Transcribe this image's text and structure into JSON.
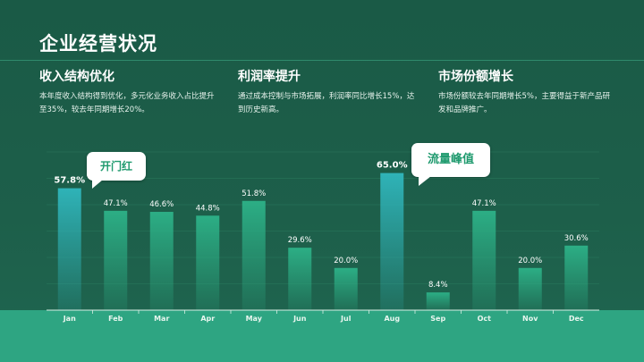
{
  "header": {
    "title": "企业经营状况"
  },
  "columns": [
    {
      "heading": "收入结构优化",
      "body": "本年度收入结构得到优化，多元化业务收入占比提升至35%，较去年同期增长20%。"
    },
    {
      "heading": "利润率提升",
      "body": "通过成本控制与市场拓展，利润率同比增长15%，达到历史新高。"
    },
    {
      "heading": "市场份额增长",
      "body": "市场份额较去年同期增长5%，主要得益于新产品研发和品牌推广。"
    }
  ],
  "callouts": {
    "jan": "开门红",
    "aug": "流量峰值"
  },
  "chart_data": {
    "type": "bar",
    "categories": [
      "Jan",
      "Feb",
      "Mar",
      "Apr",
      "May",
      "Jun",
      "Jul",
      "Aug",
      "Sep",
      "Oct",
      "Nov",
      "Dec"
    ],
    "values": [
      57.8,
      47.1,
      46.6,
      44.8,
      51.8,
      29.6,
      20.0,
      65.0,
      8.4,
      47.1,
      20.0,
      30.6
    ],
    "labels": [
      "57.8%",
      "47.1%",
      "46.6%",
      "44.8%",
      "51.8%",
      "29.6%",
      "20.0%",
      "65.0%",
      "8.4%",
      "47.1%",
      "20.0%",
      "30.6%"
    ],
    "highlighted": [
      "Jan",
      "Aug"
    ],
    "ylim": [
      0,
      75
    ],
    "grid": true,
    "colors": {
      "bar": "#2cae85",
      "highlight": "#2fb3b8"
    }
  }
}
